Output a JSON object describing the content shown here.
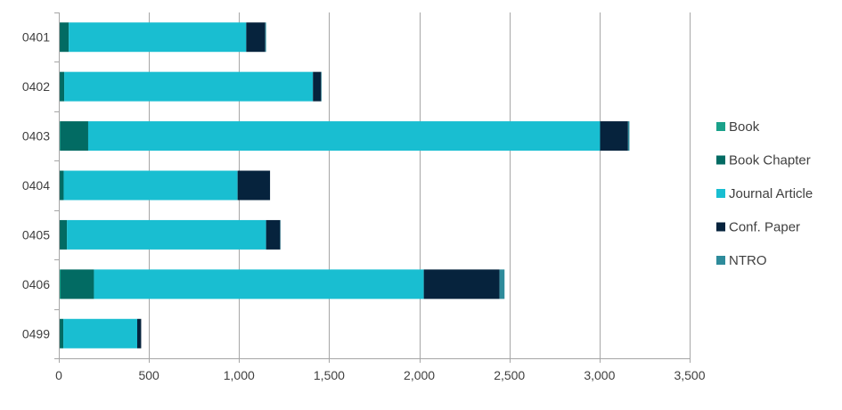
{
  "chart_data": {
    "type": "bar",
    "orientation": "horizontal",
    "stacked": true,
    "title": "",
    "xlabel": "",
    "ylabel": "",
    "xlim": [
      0,
      3500
    ],
    "x_ticks": [
      0,
      500,
      1000,
      1500,
      2000,
      2500,
      3000,
      3500
    ],
    "x_tick_labels": [
      "0",
      "500",
      "1,000",
      "1,500",
      "2,000",
      "2,500",
      "3,000",
      "3,500"
    ],
    "grid": "vertical",
    "legend_position": "right",
    "categories": [
      "0401",
      "0402",
      "0403",
      "0404",
      "0405",
      "0406",
      "0499"
    ],
    "series": [
      {
        "name": "Book",
        "color": "#1aa18a",
        "values": [
          5,
          5,
          8,
          5,
          5,
          10,
          5
        ]
      },
      {
        "name": "Book Chapter",
        "color": "#026b63",
        "values": [
          50,
          25,
          155,
          22,
          40,
          185,
          20
        ]
      },
      {
        "name": "Journal Article",
        "color": "#19bed1",
        "values": [
          985,
          1380,
          2840,
          965,
          1105,
          1830,
          410
        ]
      },
      {
        "name": "Conf. Paper",
        "color": "#06233d",
        "values": [
          105,
          45,
          155,
          180,
          78,
          420,
          22
        ]
      },
      {
        "name": "NTRO",
        "color": "#2e8b9b",
        "values": [
          5,
          3,
          8,
          0,
          2,
          28,
          0
        ]
      }
    ]
  }
}
